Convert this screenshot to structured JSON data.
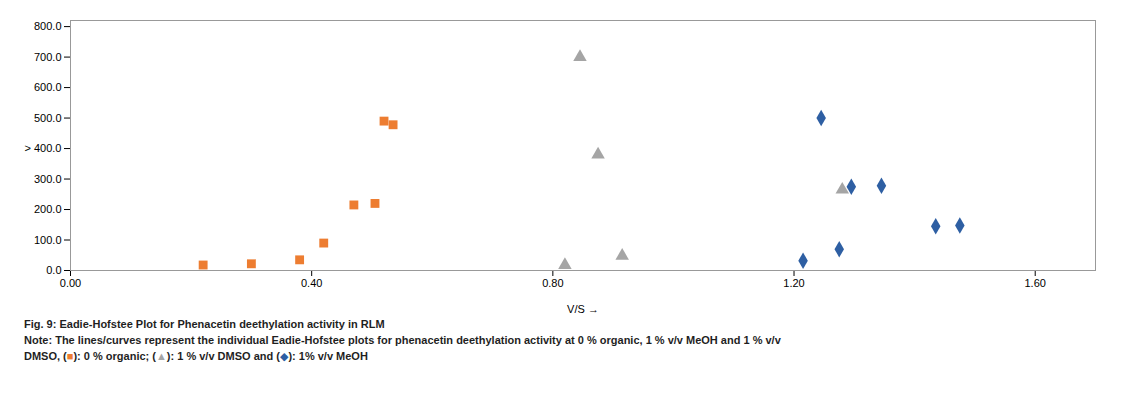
{
  "chart_data": {
    "type": "scatter",
    "title": "Fig. 9: Eadie-Hofstee Plot for Phenacetin deethylation activity in RLM",
    "caption": [
      [
        "Note: The lines/curves represent the individual Eadie-Hofstee plots for phenacetin deethylation activity at 0 % organic, 1 % v/v MeOH and 1 % v/v"
      ],
      [
        "DMSO, (",
        {
          "text": "■",
          "color": "#ED7D31"
        },
        "): 0 % organic; (",
        {
          "text": "▲",
          "color": "#A5A5A5"
        },
        "): 1 % v/v DMSO and (",
        {
          "text": "◆",
          "color": "#2E5FA3"
        },
        "): 1% v/v MeOH"
      ]
    ],
    "xlabel": "V/S",
    "series": [
      {
        "color": "#ED7D31",
        "marker": "square",
        "x": [
          0.22,
          0.3,
          0.38,
          0.42,
          0.47,
          0.505,
          0.52,
          0.535
        ],
        "values": [
          18,
          22,
          35,
          90,
          215,
          220,
          490,
          478
        ]
      },
      {
        "color": "#A5A5A5",
        "marker": "triangle",
        "x": [
          0.82,
          0.845,
          0.875,
          0.915,
          1.28
        ],
        "values": [
          18,
          700,
          380,
          48,
          265
        ]
      },
      {
        "color": "#2E5FA3",
        "marker": "diamond",
        "x": [
          1.215,
          1.245,
          1.275,
          1.295,
          1.345,
          1.435,
          1.475
        ],
        "values": [
          32,
          500,
          70,
          275,
          278,
          145,
          148
        ]
      }
    ],
    "xlim": [
      0.0,
      1.7
    ],
    "ylim": [
      0.0,
      820
    ],
    "xticks": [
      {
        "value": 0.0,
        "label": "0.00"
      },
      {
        "value": 0.4,
        "label": "0.40"
      },
      {
        "value": 0.8,
        "label": "0.80"
      },
      {
        "value": 1.2,
        "label": "1.20"
      },
      {
        "value": 1.6,
        "label": "1.60"
      }
    ],
    "yticks": [
      {
        "value": 0.0,
        "label": "0.0"
      },
      {
        "value": 100.0,
        "label": "100.0"
      },
      {
        "value": 200.0,
        "label": "200.0"
      },
      {
        "value": 300.0,
        "label": "300.0"
      },
      {
        "value": 400.0,
        "label": "> 400.0"
      },
      {
        "value": 500.0,
        "label": "500.0"
      },
      {
        "value": 600.0,
        "label": "600.0"
      },
      {
        "value": 700.0,
        "label": "700.0"
      },
      {
        "value": 800.0,
        "label": "800.0"
      }
    ],
    "grid": false
  }
}
